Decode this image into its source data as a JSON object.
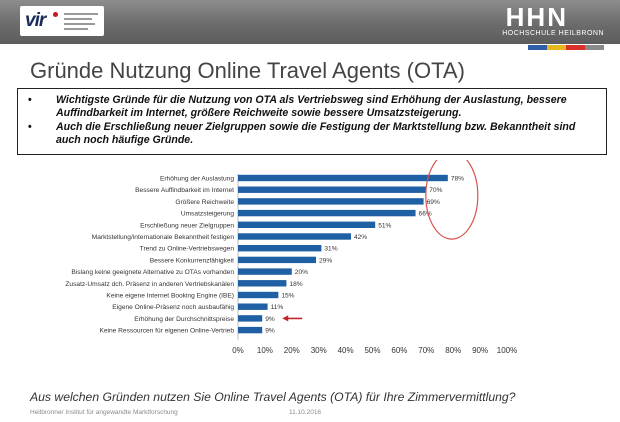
{
  "header": {
    "vir_logo_text": "vir",
    "hhn_logo_text": "HHN",
    "hhn_subtitle": "HOCHSCHULE HEILBRONN",
    "strip_colors": [
      "#2f5fa8",
      "#e6b81e",
      "#d9302c",
      "#8a8a8a"
    ]
  },
  "title": "Gründe Nutzung Online Travel Agents (OTA)",
  "summary": {
    "bullets": [
      "Wichtigste Gründe für die Nutzung von OTA als Vertriebsweg sind Erhöhung der Auslastung, bessere Auffindbarkeit im Internet, größere Reichweite sowie bessere Umsatzsteigerung.",
      "Auch die Erschließung neuer Zielgruppen sowie die Festigung der Marktstellung bzw. Bekanntheit sind auch noch häufige Gründe."
    ]
  },
  "chart_data": {
    "type": "bar",
    "orientation": "horizontal",
    "categories": [
      "Erhöhung der Auslastung",
      "Bessere Auffindbarkeit im Internet",
      "Größere Reichweite",
      "Umsatzsteigerung",
      "Erschließung neuer Zielgruppen",
      "Marktstellung/internationale Bekanntheit festigen",
      "Trend zu Online-Vertriebswegen",
      "Bessere Konkurrenzfähigkeit",
      "Bislang keine geeignete Alternative zu OTAs vorhanden",
      "Zusatz-Umsatz dch. Präsenz in anderen Vertriebskanälen",
      "Keine eigene Internet Booking Engine (IBE)",
      "Eigene Online-Präsenz noch ausbaufähig",
      "Erhöhung der Durchschnittspreise",
      "Keine Ressourcen für eigenen Online-Vertrieb"
    ],
    "values": [
      78,
      70,
      69,
      66,
      51,
      42,
      31,
      29,
      20,
      18,
      15,
      11,
      9,
      9
    ],
    "value_labels": [
      "78%",
      "70%",
      "69%",
      "66%",
      "51%",
      "42%",
      "31%",
      "29%",
      "20%",
      "18%",
      "15%",
      "11%",
      "9%",
      "9%"
    ],
    "xlim": [
      0,
      100
    ],
    "xticks": [
      "0%",
      "10%",
      "20%",
      "30%",
      "40%",
      "50%",
      "60%",
      "70%",
      "80%",
      "90%",
      "100%"
    ],
    "grid": false,
    "bar_color": "#1f5fa4",
    "highlight_ellipse_color": "#d9534f",
    "arrow_color": "#c0262c",
    "highlight_categories": [
      "Erhöhung der Auslastung",
      "Bessere Auffindbarkeit im Internet",
      "Größere Reichweite",
      "Umsatzsteigerung"
    ],
    "arrow_category": "Erhöhung der Durchschnittspreise"
  },
  "question": "Aus welchen Gründen nutzen Sie Online Travel Agents (OTA) für Ihre Zimmervermittlung?",
  "footer": {
    "institute": "Heilbronner Institut für angewandte Marktforschung",
    "date": "11.10.2016"
  }
}
